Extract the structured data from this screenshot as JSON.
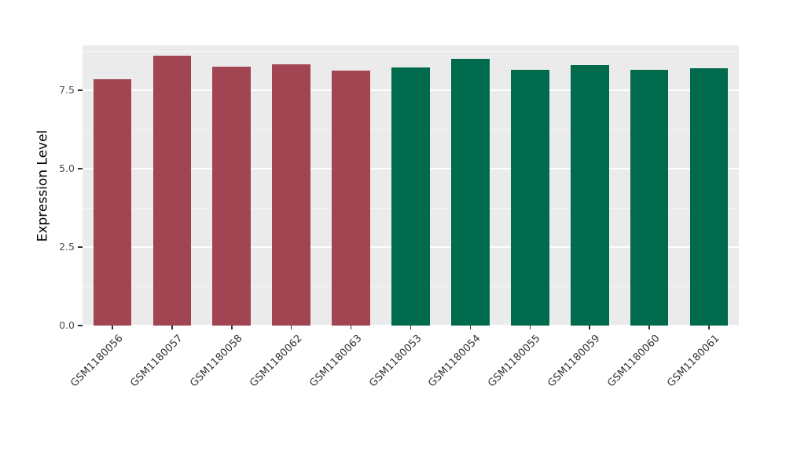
{
  "chart_data": {
    "type": "bar",
    "title": "",
    "xlabel": "",
    "ylabel": "Expression Level",
    "categories": [
      "GSM1180056",
      "GSM1180057",
      "GSM1180058",
      "GSM1180062",
      "GSM1180063",
      "GSM1180053",
      "GSM1180054",
      "GSM1180055",
      "GSM1180059",
      "GSM1180060",
      "GSM1180061"
    ],
    "values": [
      7.85,
      8.6,
      8.25,
      8.32,
      8.12,
      8.22,
      8.5,
      8.15,
      8.3,
      8.15,
      8.2
    ],
    "bar_colors": [
      "#A04551",
      "#A04551",
      "#A04551",
      "#A04551",
      "#A04551",
      "#006B4C",
      "#006B4C",
      "#006B4C",
      "#006B4C",
      "#006B4C",
      "#006B4C"
    ],
    "ylim": [
      0,
      8.925
    ],
    "yticks": [
      0,
      2.5,
      5,
      7.5
    ],
    "ytick_labels": [
      "0.0",
      "2.5",
      "5.0",
      "7.5"
    ],
    "yticks_minor": [
      1.25,
      3.75,
      6.25,
      8.75
    ],
    "grid": true,
    "legend": "none",
    "colors": {
      "panel_bg": "#EBEBEB",
      "grid_major": "#FFFFFF",
      "grid_minor": "#FFFFFF",
      "tick": "#333333",
      "tick_label": "#4D4D4D",
      "axis_title": "#000000",
      "group_red": "#A04551",
      "group_green": "#006B4C",
      "figure_bg": "#FFFFFF"
    }
  }
}
